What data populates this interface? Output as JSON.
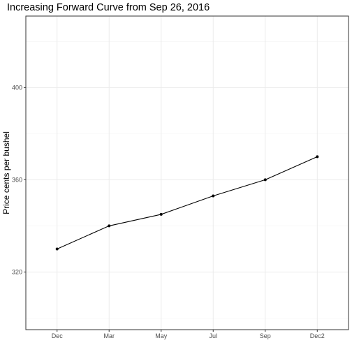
{
  "chart_data": {
    "type": "line",
    "title": "Increasing Forward Curve from Sep 26, 2016",
    "xlabel": "",
    "ylabel": "Price cents per bushel",
    "categories": [
      "Dec",
      "Mar",
      "May",
      "Jul",
      "Sep",
      "Dec2"
    ],
    "values": [
      330,
      340,
      345,
      353,
      360,
      370
    ],
    "ylim": [
      295,
      431
    ],
    "y_ticks": [
      320,
      360,
      400
    ],
    "grid": true,
    "legend": "none",
    "colors": {
      "line": "#000000",
      "points": "#000000",
      "grid": "#ebebeb",
      "border": "#333333"
    }
  }
}
